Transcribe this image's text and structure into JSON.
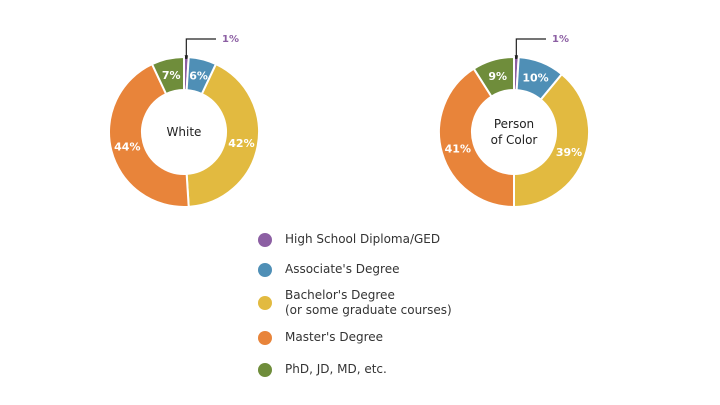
{
  "chart_data": [
    {
      "type": "donut",
      "center_label": "White",
      "categories": [
        "High School Diploma/GED",
        "Associate's Degree",
        "Bachelor's Degree\n(or some graduate courses)",
        "Master's Degree",
        "PhD, JD, MD, etc."
      ],
      "values": [
        1,
        6,
        42,
        44,
        7
      ],
      "labels": [
        "1%",
        "6%",
        "42%",
        "44%",
        "7%"
      ]
    },
    {
      "type": "donut",
      "center_label": "Person\nof Color",
      "categories": [
        "High School Diploma/GED",
        "Associate's Degree",
        "Bachelor's Degree\n(or some graduate courses)",
        "Master's Degree",
        "PhD, JD, MD, etc."
      ],
      "values": [
        1,
        10,
        39,
        41,
        9
      ],
      "labels": [
        "1%",
        "10%",
        "39%",
        "41%",
        "9%"
      ]
    }
  ],
  "legend": {
    "placement": "bottom-center",
    "items": [
      {
        "label": "High School Diploma/GED",
        "color": "#8c5fa3"
      },
      {
        "label": "Associate's Degree",
        "color": "#4f8fb6"
      },
      {
        "label": "Bachelor's Degree\n(or some graduate courses)",
        "color": "#e2ba40"
      },
      {
        "label": "Master's Degree",
        "color": "#e8843a"
      },
      {
        "label": "PhD, JD, MD, etc.",
        "color": "#6f8d3b"
      }
    ]
  }
}
